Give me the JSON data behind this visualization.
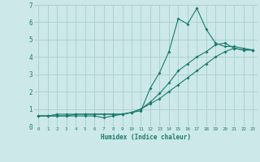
{
  "xlabel": "Humidex (Indice chaleur)",
  "x_values": [
    0,
    1,
    2,
    3,
    4,
    5,
    6,
    7,
    8,
    9,
    10,
    11,
    12,
    13,
    14,
    15,
    16,
    17,
    18,
    19,
    20,
    21,
    22,
    23
  ],
  "line1": [
    0.6,
    0.6,
    0.6,
    0.6,
    0.6,
    0.6,
    0.6,
    0.5,
    0.6,
    0.7,
    0.8,
    0.9,
    2.2,
    3.1,
    4.3,
    6.2,
    5.9,
    6.8,
    5.6,
    4.8,
    4.6,
    4.6,
    4.5,
    4.4
  ],
  "line2": [
    0.6,
    0.6,
    0.7,
    0.7,
    0.7,
    0.7,
    0.7,
    0.7,
    0.7,
    0.7,
    0.8,
    1.0,
    1.4,
    1.9,
    2.5,
    3.2,
    3.6,
    4.0,
    4.3,
    4.7,
    4.8,
    4.5,
    4.4,
    4.4
  ],
  "line3": [
    0.6,
    0.6,
    0.6,
    0.6,
    0.7,
    0.7,
    0.7,
    0.7,
    0.7,
    0.7,
    0.8,
    1.0,
    1.3,
    1.6,
    2.0,
    2.4,
    2.8,
    3.2,
    3.6,
    4.0,
    4.3,
    4.5,
    4.4,
    4.4
  ],
  "line_color": "#1a7a6e",
  "bg_color": "#cce8e8",
  "grid_color": "#aacece",
  "ylim": [
    0,
    7
  ],
  "xlim": [
    -0.5,
    23.5
  ],
  "yticks": [
    0,
    1,
    2,
    3,
    4,
    5,
    6,
    7
  ],
  "xticks": [
    0,
    1,
    2,
    3,
    4,
    5,
    6,
    7,
    8,
    9,
    10,
    11,
    12,
    13,
    14,
    15,
    16,
    17,
    18,
    19,
    20,
    21,
    22,
    23
  ]
}
